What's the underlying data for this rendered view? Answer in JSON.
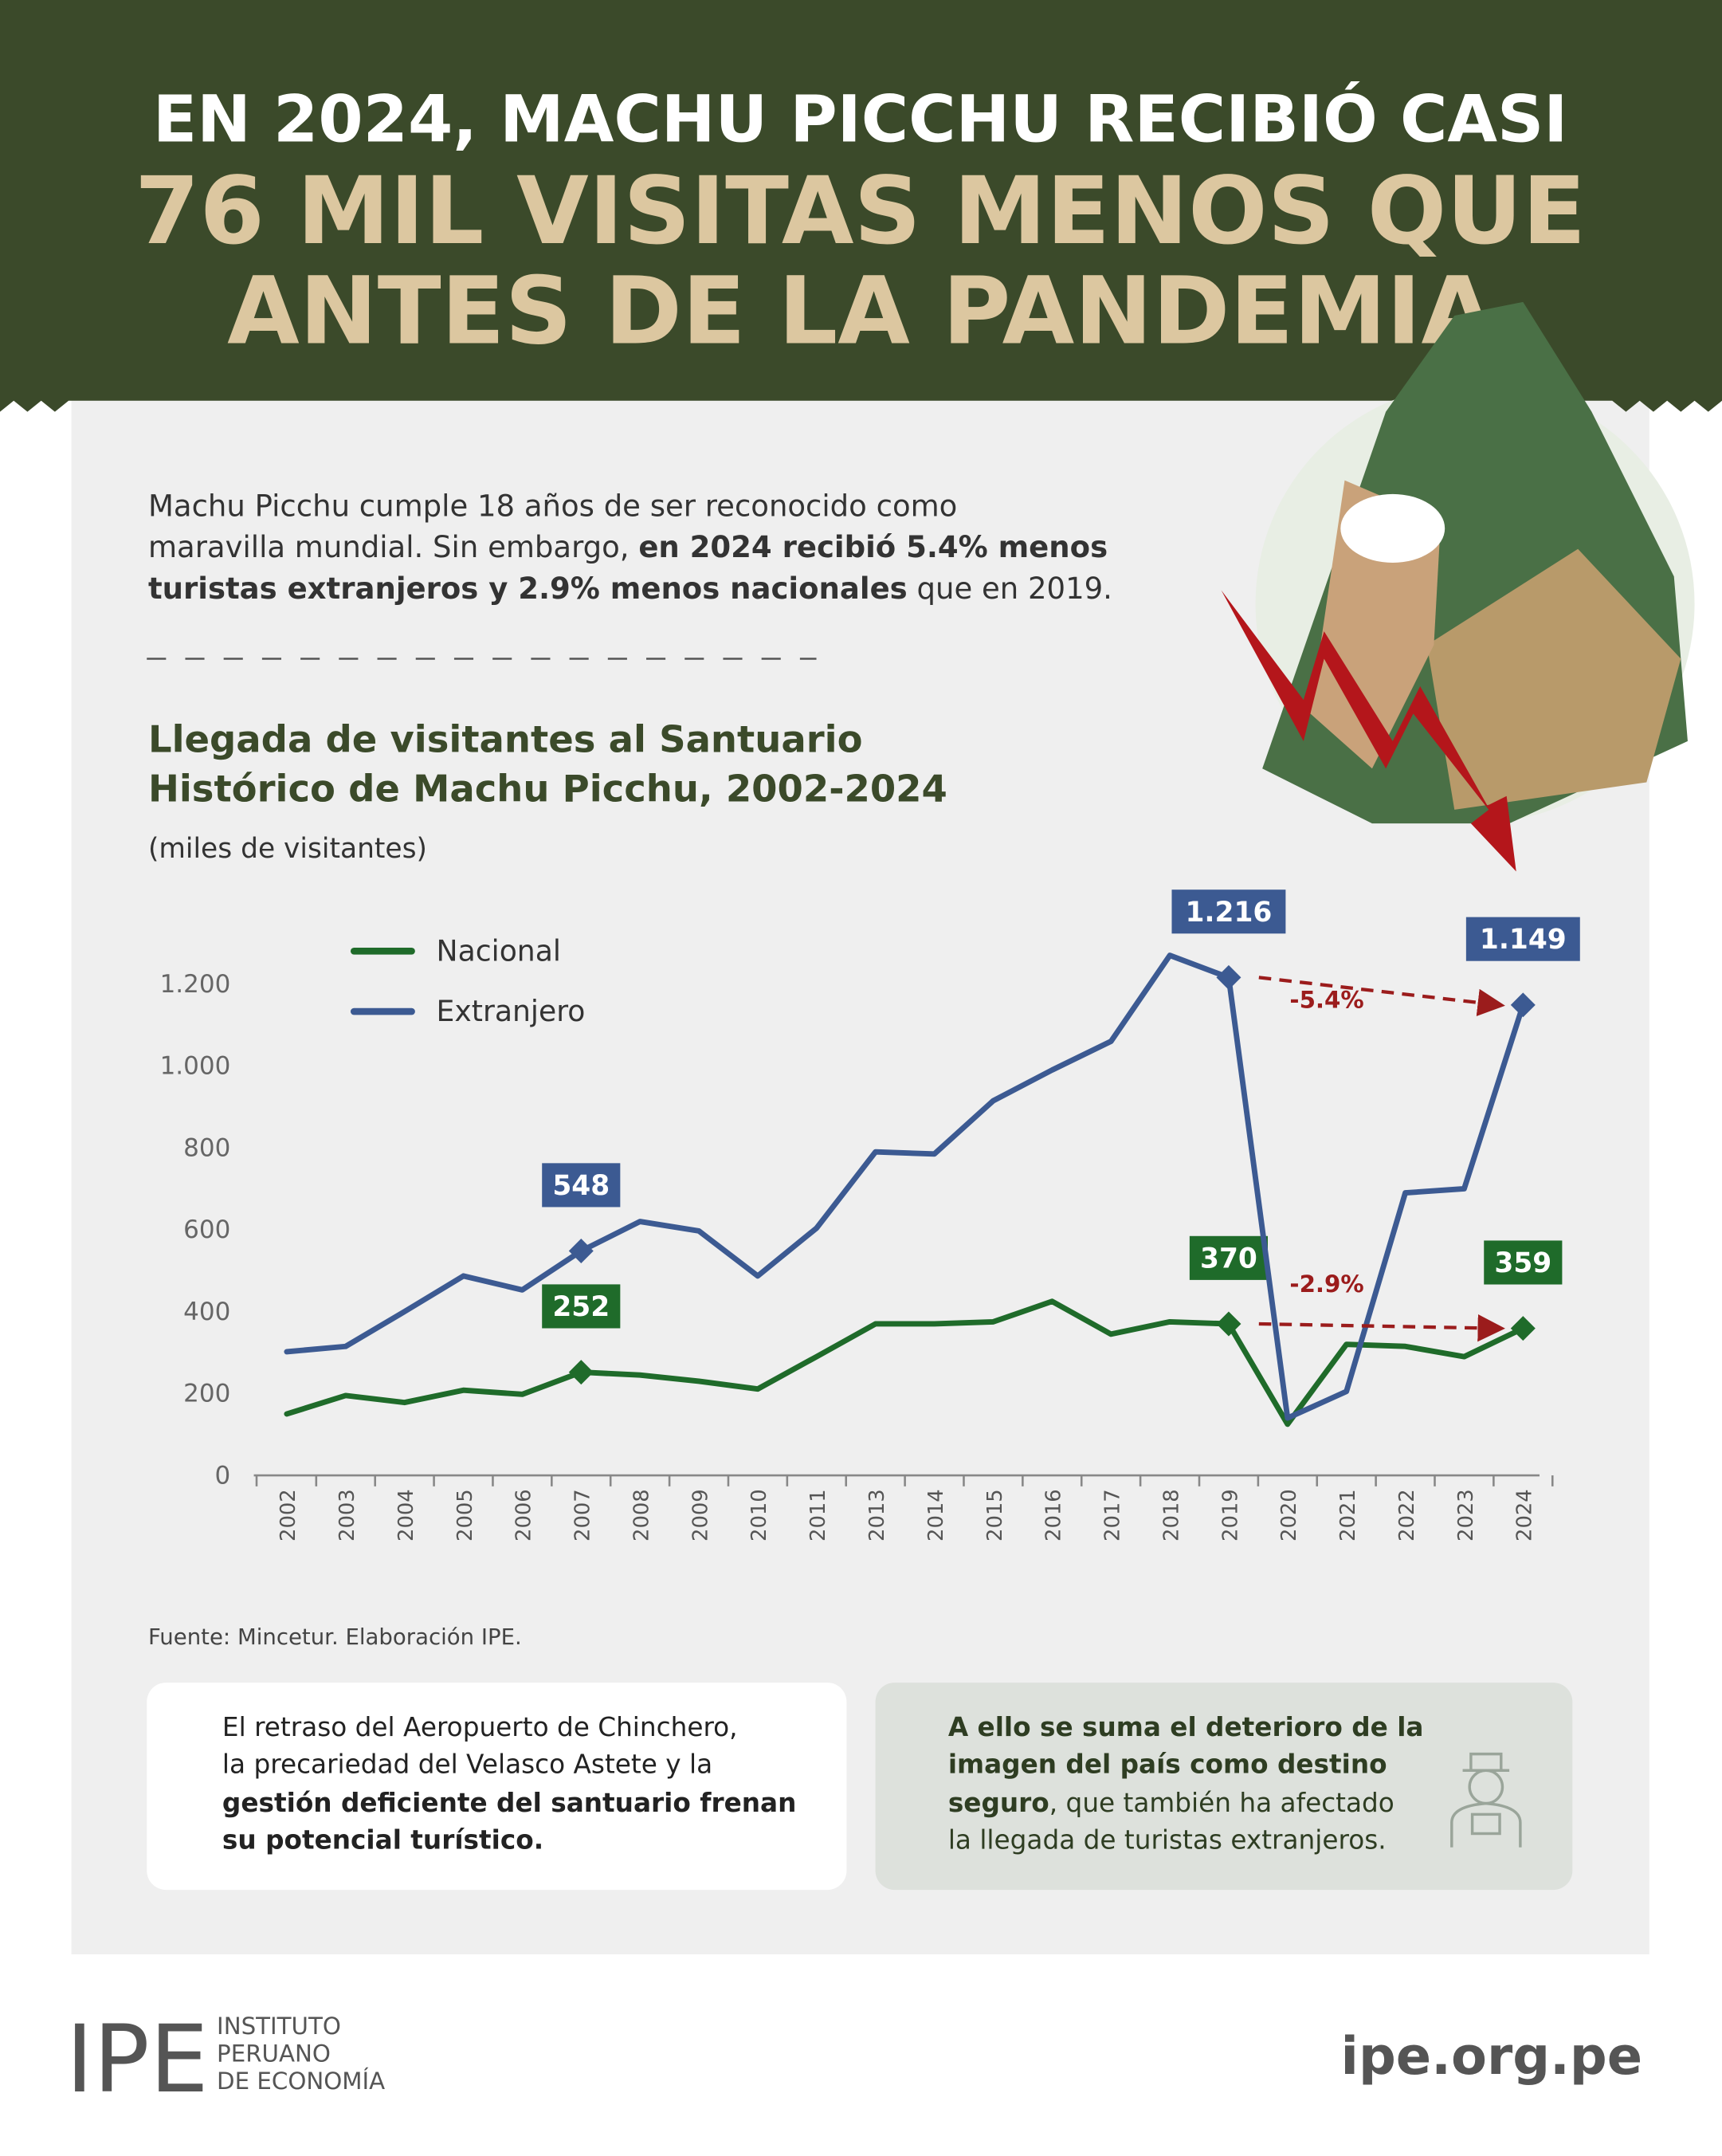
{
  "header": {
    "lines": [
      "EN 2024, MACHU PICCHU RECIBIÓ CASI",
      "76 MIL VISITAS MENOS QUE",
      "ANTES DE LA PANDEMIA"
    ]
  },
  "intro": {
    "lines": [
      [
        "Machu Picchu cumple 18 años de ser reconocido como"
      ],
      [
        "maravilla mundial. Sin embargo, ",
        "en 2024 recibió 5.4% menos"
      ],
      [
        "turistas extranjeros y 2.9% menos nacionales",
        " que en 2019."
      ]
    ]
  },
  "chart_data": {
    "type": "line",
    "title": [
      "Llegada de visitantes al Santuario",
      "Histórico de Machu Picchu, 2002-2024"
    ],
    "subtitle": "(miles de visitantes)",
    "categories": [
      "2002",
      "2003",
      "2004",
      "2005",
      "2006",
      "2007",
      "2008",
      "2009",
      "2010",
      "2011",
      "2013",
      "2014",
      "2015",
      "2016",
      "2017",
      "2018",
      "2019",
      "2020",
      "2021",
      "2022",
      "2023",
      "2024"
    ],
    "series": [
      {
        "name": "Nacional",
        "color": "#1f6b2a",
        "values": [
          150,
          195,
          178,
          208,
          198,
          252,
          245,
          230,
          211,
          290,
          370,
          370,
          375,
          425,
          345,
          375,
          370,
          125,
          320,
          315,
          290,
          359
        ],
        "value_labels": [
          null,
          null,
          null,
          null,
          null,
          "252",
          null,
          null,
          null,
          null,
          null,
          null,
          null,
          null,
          null,
          null,
          "370",
          null,
          null,
          null,
          null,
          "359"
        ]
      },
      {
        "name": "Extranjero",
        "color": "#3c5a92",
        "values": [
          302,
          315,
          400,
          487,
          453,
          548,
          620,
          597,
          487,
          604,
          790,
          785,
          915,
          990,
          1060,
          1270,
          1216,
          140,
          205,
          690,
          700,
          1149
        ],
        "value_labels": [
          null,
          null,
          null,
          null,
          null,
          "548",
          null,
          null,
          null,
          null,
          null,
          null,
          null,
          null,
          null,
          null,
          "1.216",
          null,
          null,
          null,
          null,
          "1.149"
        ]
      }
    ],
    "annotations": [
      "-2.9%",
      "-5.4%"
    ],
    "ylim": [
      0,
      1200
    ],
    "yticks": [
      0,
      200,
      400,
      600,
      800,
      {
        "value": 1000,
        "label": "1.000"
      },
      {
        "value": 1200,
        "label": "1.200"
      }
    ],
    "grid": false,
    "legend": "top-left",
    "source": "Fuente: Mincetur. Elaboración IPE."
  },
  "boxes": [
    {
      "lines": [
        [
          "El retraso del Aeropuerto de Chinchero,"
        ],
        [
          "la precariedad del Velasco Astete y la"
        ],
        [
          "gestión deficiente del santuario frenan"
        ],
        [
          "su potencial turístico."
        ]
      ]
    },
    {
      "lines": [
        [
          "A ello se suma el deterioro de la"
        ],
        [
          "imagen del país como destino"
        ],
        [
          "seguro",
          ", que también ha afectado"
        ],
        [
          "la llegada de turistas extranjeros."
        ]
      ]
    }
  ],
  "footer": {
    "logo": "IPE",
    "name": [
      "INSTITUTO",
      "PERUANO",
      "DE ECONOMÍA"
    ],
    "url": "ipe.org.pe"
  }
}
